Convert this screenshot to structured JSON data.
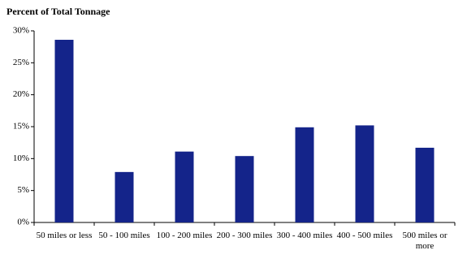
{
  "chart_data": {
    "type": "bar",
    "title": "Percent of Total Tonnage",
    "categories": [
      "50 miles or less",
      "50 - 100 miles",
      "100 - 200 miles",
      "200 - 300 miles",
      "300 - 400 miles",
      "400 - 500 miles",
      "500 miles or more"
    ],
    "values": [
      28.6,
      7.9,
      11.1,
      10.4,
      14.9,
      15.2,
      11.7
    ],
    "color": "#14248a",
    "ylim": [
      0,
      30
    ],
    "yticks": [
      {
        "value": 0,
        "label": "0%"
      },
      {
        "value": 5,
        "label": "5%"
      },
      {
        "value": 10,
        "label": "10%"
      },
      {
        "value": 15,
        "label": "15%"
      },
      {
        "value": 20,
        "label": "20%"
      },
      {
        "value": 25,
        "label": "25%"
      },
      {
        "value": 30,
        "label": "30%"
      }
    ],
    "grid": false
  }
}
